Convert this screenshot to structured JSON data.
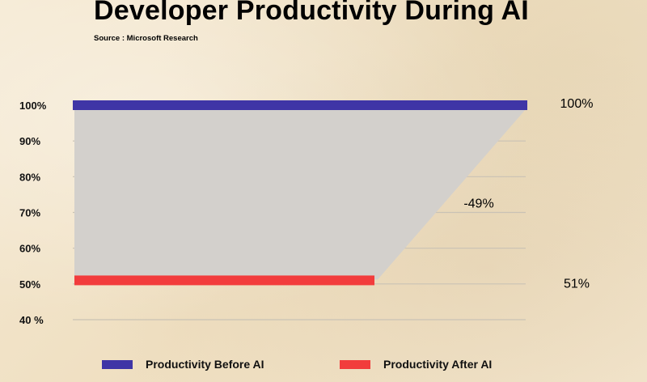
{
  "chart_data": {
    "type": "bar",
    "title": "Developer Productivity During AI",
    "subtitle": "Source : Microsoft Research",
    "ylim": [
      40,
      100
    ],
    "y_ticks": [
      "100%",
      "90%",
      "80%",
      "70%",
      "60%",
      "50%",
      "40 %"
    ],
    "series": [
      {
        "name": "Productivity Before AI",
        "value": 100,
        "label": "100%",
        "color": "#3f35a6"
      },
      {
        "name": "Productivity After AI",
        "value": 51,
        "label": "51%",
        "color": "#f23c3c"
      }
    ],
    "change_label": "-49%",
    "grid": true,
    "legend_position": "bottom"
  }
}
